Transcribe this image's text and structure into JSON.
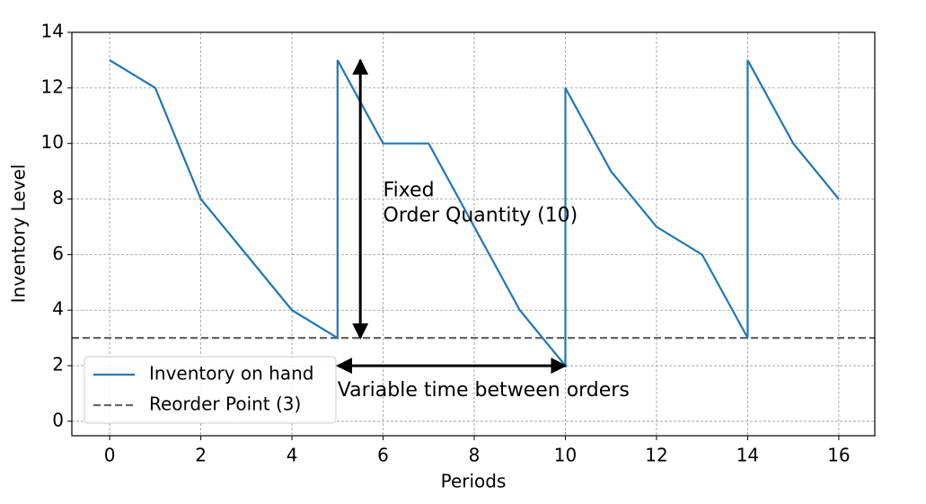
{
  "chart_data": {
    "type": "line",
    "xlabel": "Periods",
    "ylabel": "Inventory Level",
    "xlim": [
      -0.83,
      16.79
    ],
    "ylim": [
      -0.52,
      14
    ],
    "xticks": [
      0,
      2,
      4,
      6,
      8,
      10,
      12,
      14,
      16
    ],
    "yticks": [
      0,
      2,
      4,
      6,
      8,
      10,
      12,
      14
    ],
    "grid": true,
    "legend": "lower left",
    "series": [
      {
        "name": "Inventory on hand",
        "color": "#1f77b4",
        "linestyle": "solid",
        "x": [
          0,
          1,
          2,
          3,
          4,
          5,
          5,
          6,
          7,
          8,
          9,
          10,
          10,
          11,
          12,
          13,
          14,
          14,
          15,
          16
        ],
        "values": [
          13,
          12,
          8,
          6,
          4,
          3,
          13,
          10,
          10,
          7,
          4,
          2,
          12,
          9,
          7,
          6,
          3,
          13,
          10,
          8
        ]
      },
      {
        "name": "Reorder Point (3)",
        "color": "#666666",
        "linestyle": "dashed",
        "values": [
          3
        ]
      }
    ],
    "annotations": [
      {
        "lines": [
          "Fixed",
          "Order Quantity (10)"
        ],
        "x": 6,
        "y": 8.3,
        "arrow_x": [
          5.5,
          5.5
        ],
        "arrow_y": [
          3,
          13
        ]
      },
      {
        "lines": [
          "Variable time between orders"
        ],
        "x": 5,
        "y": 1.1,
        "arrow_x": [
          5,
          10
        ],
        "arrow_y": [
          2,
          2
        ]
      }
    ]
  }
}
